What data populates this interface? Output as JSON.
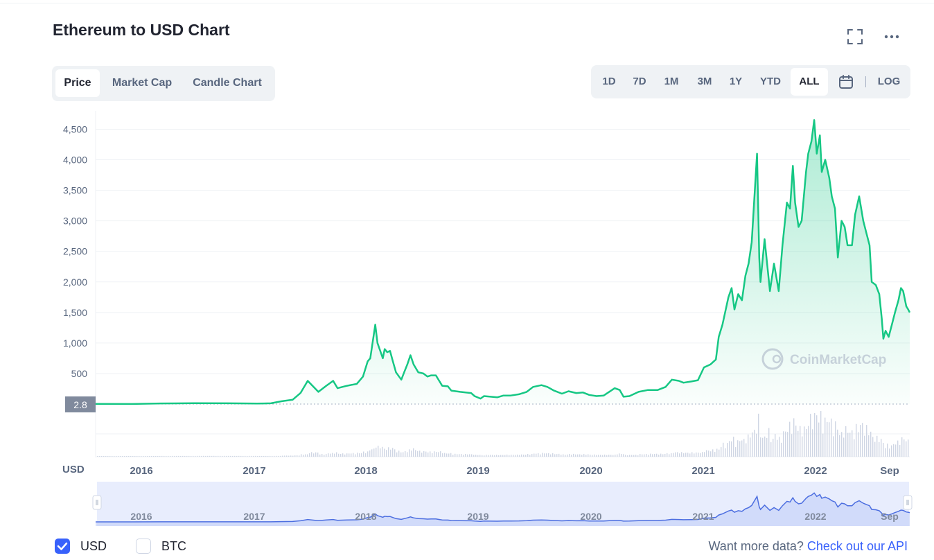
{
  "page": {
    "title": "Ethereum to USD Chart",
    "tabs": [
      {
        "label": "Price",
        "active": true
      },
      {
        "label": "Market Cap",
        "active": false
      },
      {
        "label": "Candle Chart",
        "active": false
      }
    ],
    "ranges": [
      {
        "label": "1D",
        "active": false
      },
      {
        "label": "7D",
        "active": false
      },
      {
        "label": "1M",
        "active": false
      },
      {
        "label": "3M",
        "active": false
      },
      {
        "label": "1Y",
        "active": false
      },
      {
        "label": "YTD",
        "active": false
      },
      {
        "label": "ALL",
        "active": true
      }
    ],
    "log_label": "LOG",
    "icons": {
      "fullscreen": "fullscreen-icon",
      "more": "more-icon",
      "calendar": "calendar-icon",
      "drag": "drag-handle-icon"
    }
  },
  "footer": {
    "usd_label": "USD",
    "usd_checked": true,
    "btc_label": "BTC",
    "btc_checked": false,
    "more_text": "Want more data?",
    "api_link": "Check out our API"
  },
  "colors": {
    "line": "#16c784",
    "accent": "#3861fb",
    "navigator": "#4c6ee0"
  },
  "chart_data": {
    "type": "area",
    "currency_label": "USD",
    "current_price_label": "2.8",
    "watermark": "CoinMarketCap",
    "ylim": [
      0,
      4800
    ],
    "y_ticks": [
      500,
      1000,
      1500,
      2000,
      2500,
      3000,
      3500,
      4000,
      4500
    ],
    "x_labels": [
      "2016",
      "2017",
      "2018",
      "2019",
      "2020",
      "2021",
      "2022",
      "Sep"
    ],
    "navigator_labels": [
      "2016",
      "2017",
      "2018",
      "2019",
      "2020",
      "2021",
      "2022",
      "Sep"
    ],
    "grid": true,
    "series": [
      {
        "x": [
          "2015-08-07",
          "2015-12-01",
          "2016-03-01",
          "2016-06-15",
          "2016-10-01",
          "2017-01-01",
          "2017-02-15",
          "2017-03-20",
          "2017-04-25",
          "2017-05-20",
          "2017-06-12",
          "2017-07-16",
          "2017-08-10",
          "2017-09-01",
          "2017-09-15",
          "2017-10-15",
          "2017-11-15",
          "2017-12-05",
          "2017-12-20",
          "2017-12-28",
          "2018-01-13",
          "2018-01-20",
          "2018-02-06",
          "2018-02-12",
          "2018-02-20",
          "2018-03-01",
          "2018-03-10",
          "2018-03-20",
          "2018-04-06",
          "2018-04-15",
          "2018-04-25",
          "2018-05-05",
          "2018-05-15",
          "2018-05-30",
          "2018-06-15",
          "2018-06-28",
          "2018-07-10",
          "2018-07-25",
          "2018-08-14",
          "2018-09-01",
          "2018-09-12",
          "2018-10-10",
          "2018-11-14",
          "2018-11-25",
          "2018-12-14",
          "2018-12-25",
          "2019-01-15",
          "2019-02-05",
          "2019-02-25",
          "2019-03-20",
          "2019-04-15",
          "2019-05-10",
          "2019-05-30",
          "2019-06-26",
          "2019-07-15",
          "2019-08-05",
          "2019-08-30",
          "2019-09-20",
          "2019-10-15",
          "2019-11-05",
          "2019-11-25",
          "2019-12-18",
          "2020-01-10",
          "2020-02-14",
          "2020-03-01",
          "2020-03-13",
          "2020-04-01",
          "2020-04-30",
          "2020-05-30",
          "2020-06-30",
          "2020-07-25",
          "2020-08-14",
          "2020-09-05",
          "2020-09-20",
          "2020-10-15",
          "2020-11-05",
          "2020-11-24",
          "2020-12-15",
          "2021-01-01",
          "2021-01-10",
          "2021-01-22",
          "2021-02-10",
          "2021-02-20",
          "2021-03-01",
          "2021-03-13",
          "2021-03-25",
          "2021-04-05",
          "2021-04-15",
          "2021-04-25",
          "2021-05-05",
          "2021-05-12",
          "2021-05-19",
          "2021-05-23",
          "2021-06-05",
          "2021-06-22",
          "2021-07-05",
          "2021-07-20",
          "2021-08-01",
          "2021-08-15",
          "2021-08-25",
          "2021-09-03",
          "2021-09-10",
          "2021-09-21",
          "2021-10-01",
          "2021-10-15",
          "2021-10-22",
          "2021-11-01",
          "2021-11-10",
          "2021-11-18",
          "2021-11-28",
          "2021-12-04",
          "2021-12-15",
          "2021-12-28",
          "2022-01-05",
          "2022-01-15",
          "2022-01-24",
          "2022-02-05",
          "2022-02-15",
          "2022-02-24",
          "2022-03-10",
          "2022-03-20",
          "2022-04-02",
          "2022-04-15",
          "2022-04-25",
          "2022-05-05",
          "2022-05-12",
          "2022-05-25",
          "2022-06-05",
          "2022-06-13",
          "2022-06-18",
          "2022-06-25",
          "2022-07-05",
          "2022-07-15",
          "2022-07-25",
          "2022-08-05",
          "2022-08-13",
          "2022-08-20",
          "2022-08-30",
          "2022-09-05",
          "2022-09-10"
        ],
        "y": [
          2.8,
          1,
          10,
          14,
          12,
          8,
          12,
          45,
          70,
          180,
          380,
          200,
          300,
          380,
          260,
          300,
          330,
          450,
          700,
          750,
          1300,
          1000,
          750,
          900,
          850,
          870,
          700,
          520,
          400,
          520,
          650,
          800,
          650,
          520,
          500,
          450,
          470,
          470,
          300,
          290,
          220,
          200,
          180,
          130,
          90,
          130,
          120,
          110,
          140,
          140,
          160,
          200,
          280,
          310,
          280,
          220,
          170,
          210,
          180,
          190,
          150,
          130,
          140,
          260,
          230,
          120,
          130,
          200,
          230,
          230,
          280,
          400,
          380,
          350,
          370,
          390,
          600,
          650,
          730,
          1100,
          1300,
          1750,
          1900,
          1550,
          1800,
          1700,
          2100,
          2300,
          2650,
          3500,
          4100,
          2400,
          2000,
          2700,
          1850,
          2300,
          1850,
          2600,
          3300,
          3200,
          3900,
          3300,
          2900,
          3000,
          3800,
          4100,
          4300,
          4650,
          4100,
          4400,
          3800,
          4000,
          3700,
          3400,
          3200,
          2400,
          3000,
          2900,
          2600,
          2600,
          3100,
          3400,
          3000,
          2800,
          2600,
          2000,
          1950,
          1800,
          1400,
          1070,
          1200,
          1100,
          1300,
          1500,
          1700,
          1900,
          1850,
          1600,
          1550,
          1500
        ]
      }
    ]
  }
}
